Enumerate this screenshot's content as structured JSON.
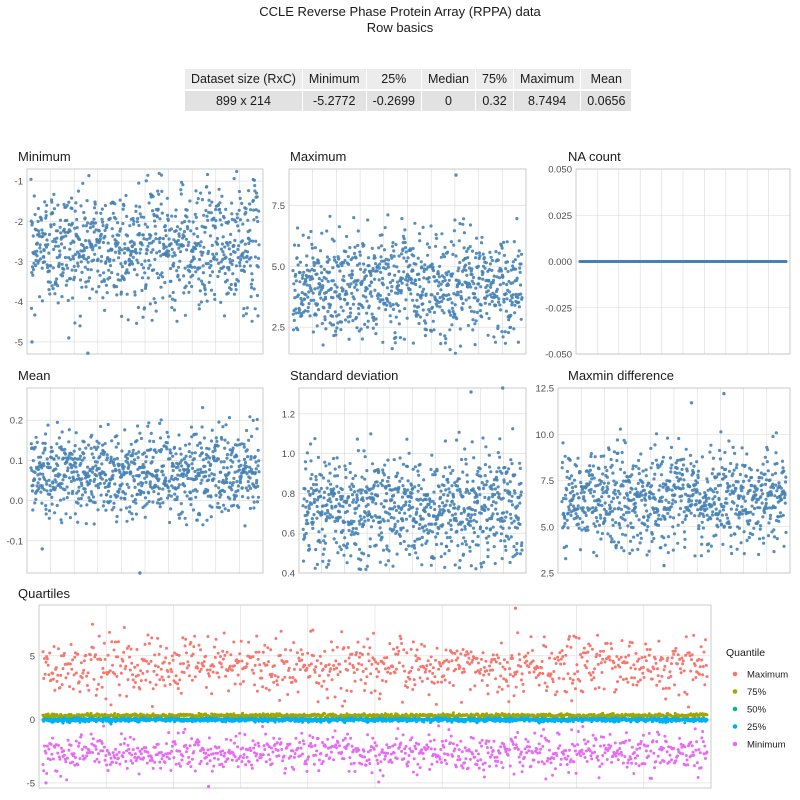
{
  "title": "CCLE Reverse Phase Protein Array (RPPA) data",
  "subtitle": "Row basics",
  "summary_table": {
    "headers": [
      "Dataset size (RxC)",
      "Minimum",
      "25%",
      "Median",
      "75%",
      "Maximum",
      "Mean"
    ],
    "values": [
      "899 x 214",
      "-5.2772",
      "-0.2699",
      "0",
      "0.32",
      "8.7494",
      "0.0656"
    ]
  },
  "colors": {
    "point": "#4682b4",
    "grid": "#d9d9d9",
    "panel_border": "#bfbfbf",
    "Maximum": "#f8766d",
    "75%": "#a3a500",
    "50%": "#00bf7d",
    "25%": "#00b0f6",
    "Minimum": "#e76bf3"
  },
  "chart_data": [
    {
      "type": "scatter",
      "title": "Minimum",
      "x_range": [
        1,
        899
      ],
      "ylim": [
        -5.3,
        -0.7
      ],
      "y_ticks": [
        -1,
        -2,
        -3,
        -4,
        -5
      ],
      "y_tick_labels": [
        "-1",
        "-2",
        "-3",
        "-4",
        "-5"
      ],
      "summary": {
        "n_points": 899,
        "typical_range": [
          -4.2,
          -1.2
        ],
        "center": -2.6,
        "notable_points": [
          [
            5,
            -5.0
          ],
          [
            225,
            -5.28
          ],
          [
            150,
            -4.9
          ]
        ]
      }
    },
    {
      "type": "scatter",
      "title": "Maximum",
      "x_range": [
        1,
        899
      ],
      "ylim": [
        1.4,
        9.0
      ],
      "y_ticks": [
        2.5,
        5.0,
        7.5
      ],
      "y_tick_labels": [
        "2.5",
        "5.0",
        "7.5"
      ],
      "summary": {
        "n_points": 899,
        "typical_range": [
          2.0,
          6.5
        ],
        "center": 4.2,
        "notable_points": [
          [
            640,
            8.75
          ]
        ]
      }
    },
    {
      "type": "scatter",
      "title": "NA count",
      "x_range": [
        1,
        899
      ],
      "ylim": [
        -0.05,
        0.05
      ],
      "y_ticks": [
        0.05,
        0.025,
        0.0,
        -0.025,
        -0.05
      ],
      "y_tick_labels": [
        "0.050",
        "0.025",
        "0.000",
        "-0.025",
        "-0.050"
      ],
      "summary": {
        "n_points": 899,
        "constant_value": 0
      }
    },
    {
      "type": "scatter",
      "title": "Mean",
      "x_range": [
        1,
        899
      ],
      "ylim": [
        -0.18,
        0.28
      ],
      "y_ticks": [
        0.2,
        0.1,
        0.0,
        -0.1
      ],
      "y_tick_labels": [
        "0.2",
        "0.1",
        "0.0",
        "-0.1"
      ],
      "summary": {
        "n_points": 899,
        "typical_range": [
          -0.03,
          0.2
        ],
        "center": 0.07,
        "notable_points": [
          [
            430,
            -0.18
          ],
          [
            45,
            -0.12
          ]
        ]
      }
    },
    {
      "type": "scatter",
      "title": "Standard deviation",
      "x_range": [
        1,
        899
      ],
      "ylim": [
        0.4,
        1.33
      ],
      "y_ticks": [
        1.2,
        1.0,
        0.8,
        0.6,
        0.4
      ],
      "y_tick_labels": [
        "1.2",
        "1.0",
        "0.8",
        "0.6",
        "0.4"
      ],
      "summary": {
        "n_points": 899,
        "typical_range": [
          0.5,
          1.05
        ],
        "center": 0.73,
        "notable_points": [
          [
            820,
            1.33
          ],
          [
            690,
            1.31
          ]
        ]
      }
    },
    {
      "type": "scatter",
      "title": "Maxmin difference",
      "x_range": [
        1,
        899
      ],
      "ylim": [
        2.5,
        12.5
      ],
      "y_ticks": [
        12.5,
        10.0,
        7.5,
        5.0,
        2.5
      ],
      "y_tick_labels": [
        "12.5",
        "10.0",
        "7.5",
        "5.0",
        "2.5"
      ],
      "summary": {
        "n_points": 899,
        "typical_range": [
          4.0,
          9.5
        ],
        "center": 6.5,
        "notable_points": [
          [
            650,
            12.2
          ],
          [
            520,
            11.7
          ],
          [
            410,
            2.9
          ]
        ]
      }
    },
    {
      "type": "scatter",
      "title": "Quartiles",
      "x_range": [
        1,
        899
      ],
      "ylim": [
        -5.4,
        9.0
      ],
      "y_ticks": [
        5,
        0,
        -5
      ],
      "y_tick_labels": [
        "5",
        "0",
        "-5"
      ],
      "legend": {
        "title": "Quantile",
        "position": "right",
        "entries": [
          "Maximum",
          "75%",
          "50%",
          "25%",
          "Minimum"
        ]
      },
      "series": [
        {
          "name": "Maximum",
          "center": 4.2,
          "typical_range": [
            2.0,
            6.5
          ],
          "notable_points": [
            [
              640,
              8.75
            ]
          ]
        },
        {
          "name": "75%",
          "center": 0.3,
          "typical_range": [
            0.15,
            0.45
          ]
        },
        {
          "name": "50%",
          "center": 0.0,
          "typical_range": [
            -0.05,
            0.05
          ]
        },
        {
          "name": "25%",
          "center": -0.05,
          "typical_range": [
            -0.3,
            0.05
          ]
        },
        {
          "name": "Minimum",
          "center": -2.6,
          "typical_range": [
            -4.2,
            -1.2
          ],
          "notable_points": [
            [
              5,
              -5.0
            ],
            [
              225,
              -5.28
            ]
          ]
        }
      ]
    }
  ]
}
